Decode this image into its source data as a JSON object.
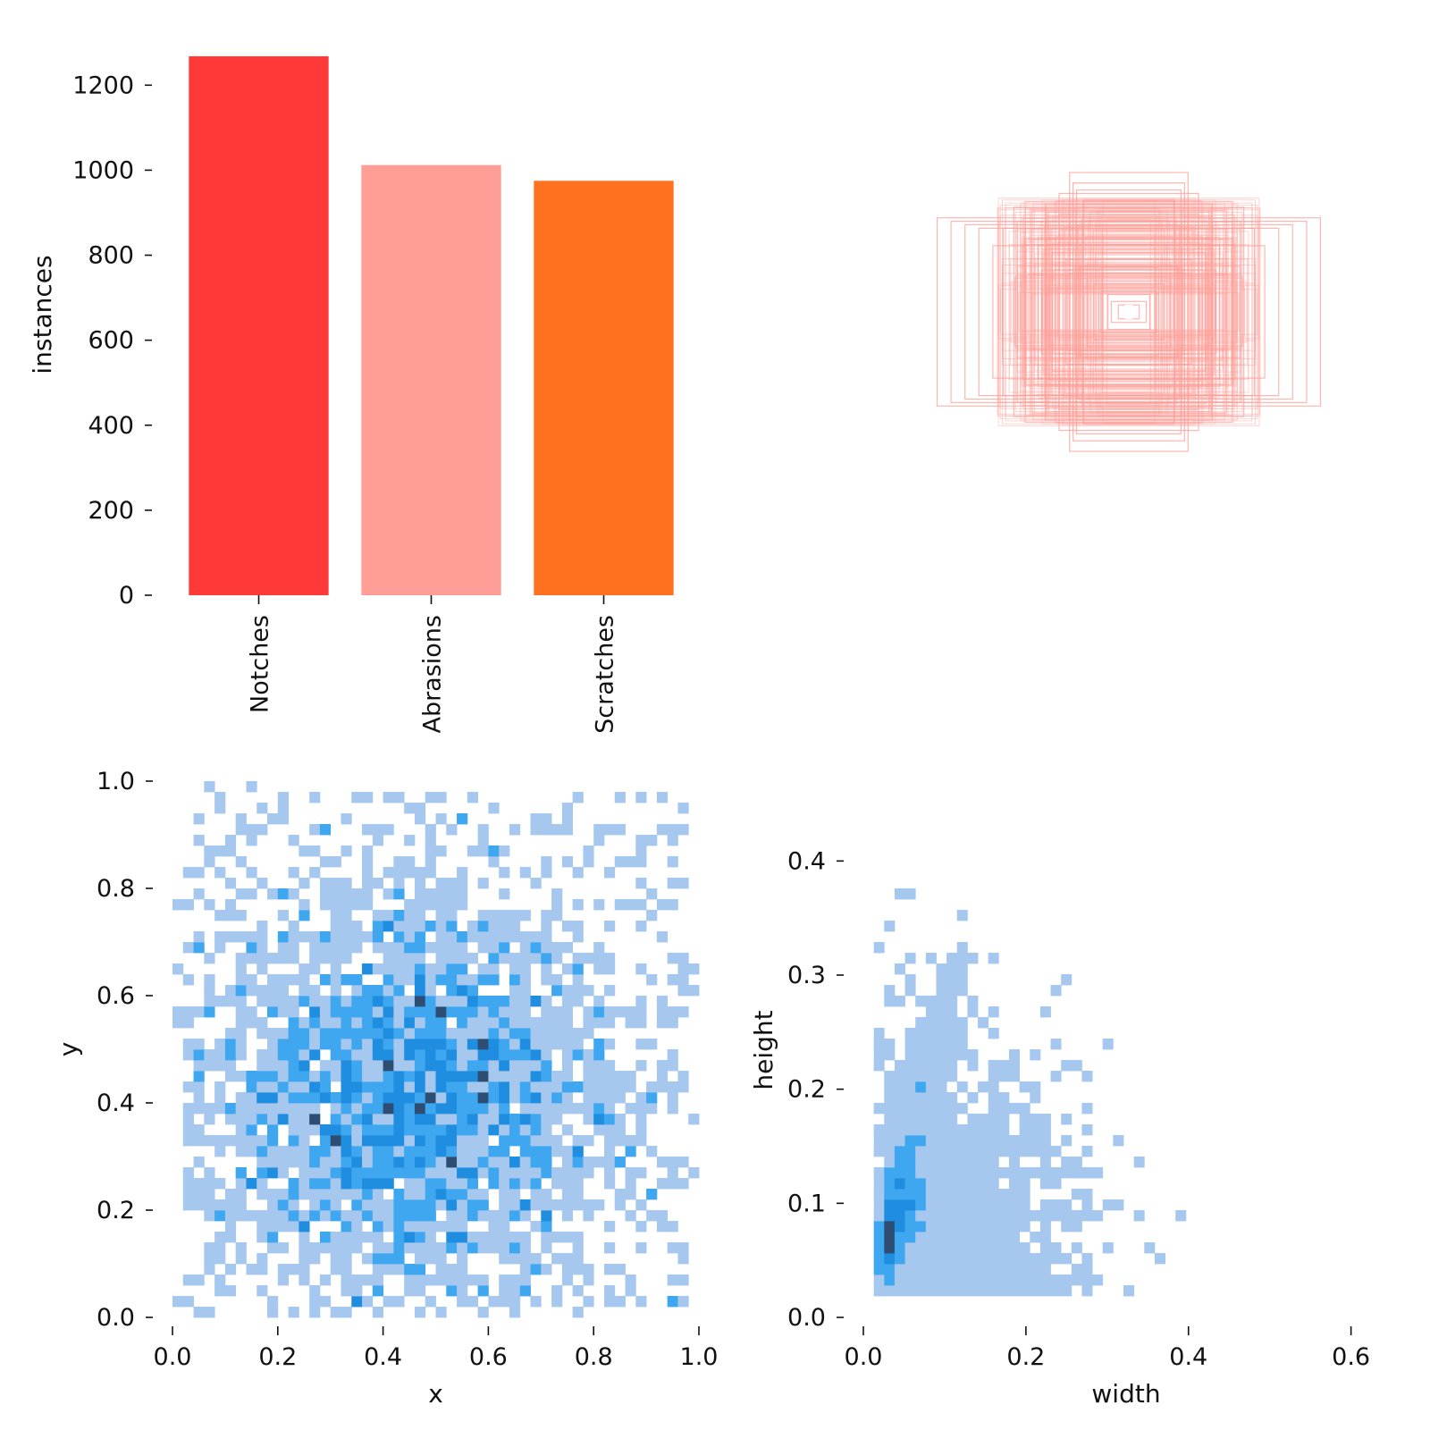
{
  "chart_data": [
    {
      "type": "bar",
      "categories": [
        "Notches",
        "Abrasions",
        "Scratches"
      ],
      "values": [
        1268,
        1012,
        975
      ],
      "colors": [
        "#ff3838",
        "#ff9d97",
        "#ff701f"
      ],
      "xlabel": "",
      "ylabel": "instances",
      "ylim": [
        0,
        1270
      ],
      "yticks": [
        "0",
        "200",
        "400",
        "600",
        "800",
        "1000",
        "1200"
      ],
      "grid": false
    },
    {
      "type": "scatter",
      "description_kind": "overlaid bounding boxes centered at one point",
      "box_color": "#ff9d97",
      "boxes_wh": [
        [
          0.55,
          0.27
        ],
        [
          0.51,
          0.26
        ],
        [
          0.47,
          0.25
        ],
        [
          0.43,
          0.24
        ],
        [
          0.17,
          0.4
        ],
        [
          0.16,
          0.37
        ],
        [
          0.15,
          0.35
        ],
        [
          0.2,
          0.34
        ],
        [
          0.24,
          0.31
        ],
        [
          0.28,
          0.29
        ],
        [
          0.32,
          0.26
        ],
        [
          0.36,
          0.24
        ],
        [
          0.3,
          0.21
        ],
        [
          0.26,
          0.19
        ],
        [
          0.22,
          0.17
        ],
        [
          0.18,
          0.15
        ],
        [
          0.14,
          0.13
        ],
        [
          0.12,
          0.1
        ],
        [
          0.1,
          0.08
        ],
        [
          0.08,
          0.06
        ],
        [
          0.06,
          0.05
        ],
        [
          0.2,
          0.28
        ],
        [
          0.33,
          0.3
        ],
        [
          0.39,
          0.19
        ],
        [
          0.13,
          0.32
        ],
        [
          0.25,
          0.12
        ],
        [
          0.05,
          0.03
        ],
        [
          0.03,
          0.02
        ]
      ],
      "grid": false
    },
    {
      "type": "heatmap",
      "xlabel": "x",
      "ylabel": "y",
      "xlim": [
        0,
        1
      ],
      "ylim": [
        0,
        1
      ],
      "xticks": [
        "0.0",
        "0.2",
        "0.4",
        "0.6",
        "0.8",
        "1.0"
      ],
      "yticks": [
        "0.0",
        "0.2",
        "0.4",
        "0.6",
        "0.8",
        "1.0"
      ],
      "bins": 50,
      "distribution": "2D histogram of box centers, densest near x≈0.45, y≈0.42",
      "grid": false
    },
    {
      "type": "heatmap",
      "xlabel": "width",
      "ylabel": "height",
      "xlim": [
        0,
        0.64
      ],
      "ylim": [
        0,
        0.47
      ],
      "xticks": [
        "0.0",
        "0.2",
        "0.4",
        "0.6"
      ],
      "yticks": [
        "0.0",
        "0.1",
        "0.2",
        "0.3",
        "0.4"
      ],
      "bins": 50,
      "distribution": "2D histogram of box sizes, densest near width≈0.05, height≈0.08",
      "grid": false
    }
  ]
}
